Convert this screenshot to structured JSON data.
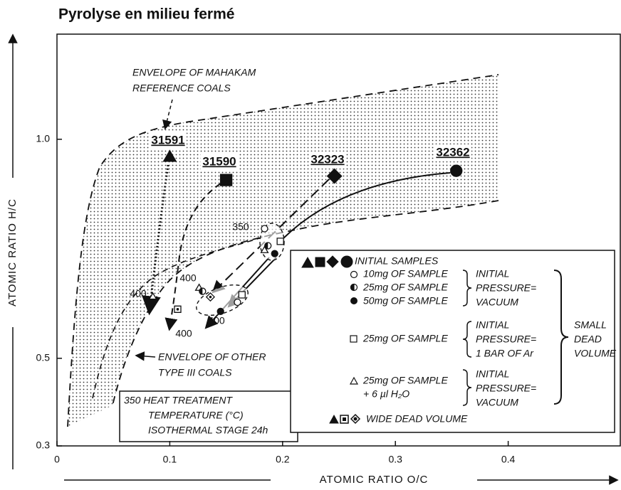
{
  "chart_data": {
    "type": "scatter",
    "title": "Pyrolyse en milieu fermé",
    "xlabel": "ATOMIC RATIO O/C",
    "ylabel": "ATOMIC RATIO H/C",
    "xlim": [
      0,
      0.5
    ],
    "ylim": [
      0.3,
      1.24
    ],
    "xticks": [
      0,
      0.1,
      0.2,
      0.3,
      0.4
    ],
    "yticks": [
      0.3,
      0.5,
      {
        "value": 1.0,
        "label": "1.0"
      }
    ],
    "color": "#111111",
    "series": [
      {
        "name": "31591",
        "markers": [
          "triangle-filled-large",
          "triangle-open"
        ],
        "x": [
          0.1,
          0.085
        ],
        "y": [
          0.96,
          0.641
        ]
      },
      {
        "name": "31590",
        "markers": [
          "square-filled-large",
          "square-dot"
        ],
        "x": [
          0.15,
          0.107
        ],
        "y": [
          0.907,
          0.612
        ]
      },
      {
        "name": "32323",
        "markers": [
          "diamond-filled-large",
          "diamond-dot"
        ],
        "x": [
          0.246,
          0.136
        ],
        "y": [
          0.916,
          0.64
        ]
      },
      {
        "name": "32362",
        "markers": [
          "circle-filled-large",
          "circle-open",
          "circle-half",
          "circle-filled",
          "triangle-open",
          "square-open",
          "triangle-open",
          "circle-half",
          "circle-filled",
          "circle-open",
          "square-open"
        ],
        "x": [
          0.354,
          0.184,
          0.187,
          0.193,
          0.184,
          0.198,
          0.126,
          0.129,
          0.145,
          0.16,
          0.164
        ],
        "y": [
          0.928,
          0.796,
          0.757,
          0.739,
          0.747,
          0.767,
          0.661,
          0.653,
          0.607,
          0.628,
          0.645
        ]
      }
    ],
    "annotations": [
      "350",
      "400",
      "400",
      "400",
      "400"
    ],
    "envelopes": {
      "mahakam": [
        "ENVELOPE OF MAHAKAM",
        "REFERENCE COALS"
      ],
      "other": [
        "ENVELOPE OF OTHER",
        "TYPE III COALS"
      ]
    },
    "heat_note": [
      "350 HEAT TREATMENT",
      "TEMPERATURE (°C)",
      "ISOTHERMAL STAGE 24h"
    ],
    "legend": {
      "initial": "INITIAL SAMPLES",
      "groups": [
        {
          "samples": [
            "10mg OF SAMPLE",
            "25mg OF SAMPLE",
            "50mg OF SAMPLE"
          ],
          "pressure": [
            "INITIAL",
            "PRESSURE=",
            "VACUUM"
          ]
        },
        {
          "samples": [
            "25mg OF SAMPLE"
          ],
          "pressure": [
            "INITIAL",
            "PRESSURE=",
            "1 BAR OF Ar"
          ]
        },
        {
          "samples": [
            "25mg OF SAMPLE",
            "+ 6 µl H₂O"
          ],
          "pressure": [
            "INITIAL",
            "PRESSURE=",
            "VACUUM"
          ]
        }
      ],
      "volume": [
        "SMALL",
        "DEAD",
        "VOLUME"
      ],
      "wide": "WIDE DEAD VOLUME"
    }
  }
}
